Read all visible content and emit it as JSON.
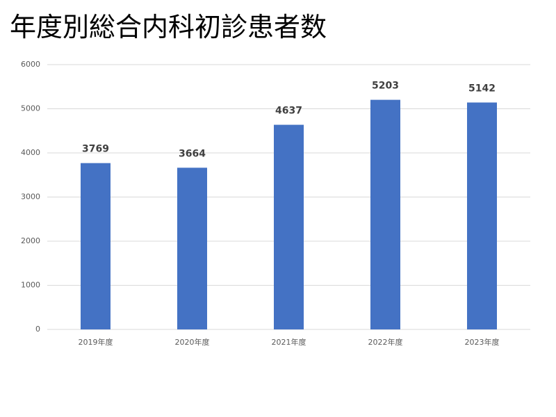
{
  "chart_data": {
    "type": "bar",
    "title": "年度別総合内科初診患者数",
    "categories": [
      "2019年度",
      "2020年度",
      "2021年度",
      "2022年度",
      "2023年度"
    ],
    "values": [
      3769,
      3664,
      4637,
      5203,
      5142
    ],
    "color": "#4472c4",
    "ylim": [
      0,
      6000
    ],
    "yticks": [
      0,
      1000,
      2000,
      3000,
      4000,
      5000,
      6000
    ],
    "grid": true
  }
}
